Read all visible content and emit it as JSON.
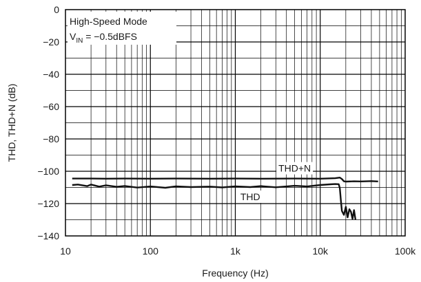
{
  "chart_data": {
    "type": "line",
    "title": "",
    "xlabel": "Frequency (Hz)",
    "ylabel": "THD, THD+N (dB)",
    "xscale": "log",
    "xlim": [
      10,
      100000
    ],
    "ylim": [
      -140,
      0
    ],
    "grid": true,
    "x_tick_labels": [
      "10",
      "100",
      "1k",
      "10k",
      "100k"
    ],
    "y_tick_labels": [
      "0",
      "−20",
      "−40",
      "−60",
      "−80",
      "−100",
      "−120",
      "−140"
    ],
    "annotation": {
      "line1": "High-Speed Mode",
      "line2_prefix": "V",
      "line2_subscript": "IN",
      "line2_suffix": " = −0.5dBFS"
    },
    "series": [
      {
        "name": "THD+N",
        "color": "#111111",
        "x": [
          12,
          20,
          30,
          50,
          100,
          200,
          500,
          1000,
          2000,
          5000,
          10000,
          15000,
          17000,
          18000,
          19000,
          20000,
          25000,
          30000,
          40000,
          48000
        ],
        "y": [
          -104.5,
          -104.5,
          -104.6,
          -104.5,
          -104.6,
          -104.5,
          -104.6,
          -104.5,
          -104.6,
          -104.5,
          -104.6,
          -104.3,
          -103.9,
          -104.8,
          -106.2,
          -106.4,
          -106.2,
          -106.3,
          -106.1,
          -106.3
        ]
      },
      {
        "name": "THD",
        "color": "#111111",
        "x": [
          12,
          14,
          18,
          20,
          25,
          30,
          40,
          50,
          70,
          100,
          150,
          200,
          300,
          500,
          700,
          1000,
          1500,
          2000,
          3000,
          5000,
          7000,
          10000,
          13000,
          15000,
          16500,
          17000,
          17500,
          18000,
          19000,
          20000,
          21000,
          22000,
          23000,
          24000,
          25000,
          26000
        ],
        "y": [
          -108.5,
          -108.2,
          -109.2,
          -108.2,
          -109.5,
          -108.7,
          -109.6,
          -109.1,
          -110.1,
          -109.4,
          -110.2,
          -109.3,
          -109.8,
          -109.5,
          -110.0,
          -109.3,
          -109.8,
          -109.2,
          -109.9,
          -109.0,
          -109.4,
          -108.5,
          -108.1,
          -107.9,
          -108.0,
          -110.5,
          -118.0,
          -124.5,
          -127.0,
          -122.0,
          -128.5,
          -123.5,
          -125.0,
          -129.5,
          -124.0,
          -130.0
        ]
      }
    ]
  }
}
